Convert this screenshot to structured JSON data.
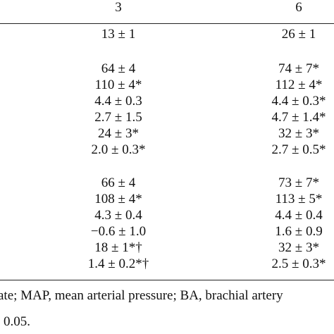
{
  "table": {
    "headers": [
      "3",
      "6"
    ],
    "groups": [
      {
        "rows": [
          [
            "13 ± 1",
            "26 ± 1"
          ]
        ]
      },
      {
        "rows": [
          [
            "64 ± 4",
            "74 ± 7*"
          ],
          [
            "110 ± 4*",
            "112 ± 4*"
          ],
          [
            "4.4 ± 0.3",
            "4.4 ± 0.3*"
          ],
          [
            "2.7 ± 1.5",
            "4.7 ± 1.4*"
          ],
          [
            "24 ± 3*",
            "32 ± 3*"
          ],
          [
            "2.0 ± 0.3*",
            "2.7 ± 0.5*"
          ]
        ]
      },
      {
        "rows": [
          [
            "66 ± 4",
            "73 ± 7*"
          ],
          [
            "108 ± 4*",
            "113 ± 5*"
          ],
          [
            "4.3 ± 0.4",
            "4.4 ± 0.4"
          ],
          [
            "−0.6 ± 1.0",
            "1.6 ± 0.9"
          ],
          [
            "18 ± 1*†",
            "32 ± 3*"
          ],
          [
            "1.4 ± 0.2*†",
            "2.5 ± 0.3*"
          ]
        ]
      }
    ]
  },
  "footnotes": [
    "ate; MAP, mean arterial pressure; BA, brachial artery",
    "0.05."
  ]
}
